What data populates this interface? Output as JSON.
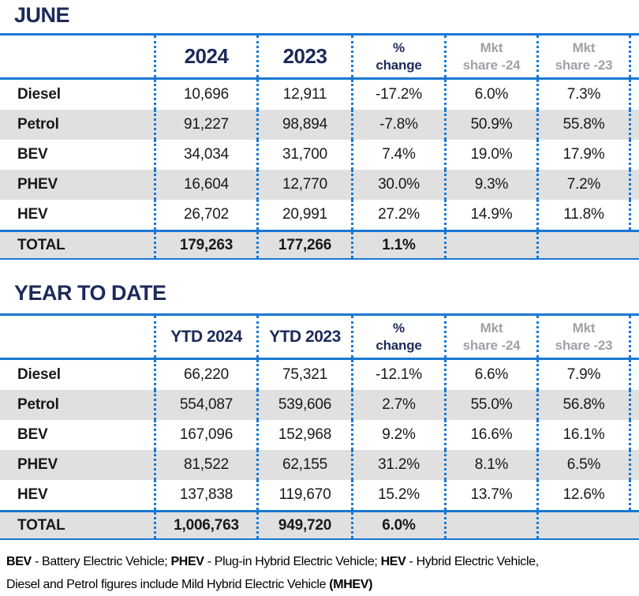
{
  "palette": {
    "line_blue": "#1a78d2",
    "heading_navy": "#1c2a58",
    "row_shade": "#e0e0e0",
    "muted_header": "#9da2a8"
  },
  "june": {
    "title": "JUNE",
    "headers": {
      "year_a": "2024",
      "year_b": "2023",
      "pct": "%\nchange",
      "mkt24": "Mkt\nshare -24",
      "mkt23": "Mkt\nshare -23"
    },
    "rows": [
      {
        "label": "Diesel",
        "v": [
          "10,696",
          "12,911",
          "-17.2%",
          "6.0%",
          "7.3%"
        ]
      },
      {
        "label": "Petrol",
        "v": [
          "91,227",
          "98,894",
          "-7.8%",
          "50.9%",
          "55.8%"
        ]
      },
      {
        "label": "BEV",
        "v": [
          "34,034",
          "31,700",
          "7.4%",
          "19.0%",
          "17.9%"
        ]
      },
      {
        "label": "PHEV",
        "v": [
          "16,604",
          "12,770",
          "30.0%",
          "9.3%",
          "7.2%"
        ]
      },
      {
        "label": "HEV",
        "v": [
          "26,702",
          "20,991",
          "27.2%",
          "14.9%",
          "11.8%"
        ]
      }
    ],
    "total": {
      "label": "TOTAL",
      "v": [
        "179,263",
        "177,266",
        "1.1%"
      ]
    }
  },
  "ytd": {
    "title": "YEAR TO DATE",
    "headers": {
      "year_a": "YTD 2024",
      "year_b": "YTD 2023",
      "pct": "%\nchange",
      "mkt24": "Mkt\nshare -24",
      "mkt23": "Mkt\nshare -23"
    },
    "rows": [
      {
        "label": "Diesel",
        "v": [
          "66,220",
          "75,321",
          "-12.1%",
          "6.6%",
          "7.9%"
        ]
      },
      {
        "label": "Petrol",
        "v": [
          "554,087",
          "539,606",
          "2.7%",
          "55.0%",
          "56.8%"
        ]
      },
      {
        "label": "BEV",
        "v": [
          "167,096",
          "152,968",
          "9.2%",
          "16.6%",
          "16.1%"
        ]
      },
      {
        "label": "PHEV",
        "v": [
          "81,522",
          "62,155",
          "31.2%",
          "8.1%",
          "6.5%"
        ]
      },
      {
        "label": "HEV",
        "v": [
          "137,838",
          "119,670",
          "15.2%",
          "13.7%",
          "12.6%"
        ]
      }
    ],
    "total": {
      "label": "TOTAL",
      "v": [
        "1,006,763",
        "949,720",
        "6.0%"
      ]
    }
  },
  "footnote": {
    "line1": [
      {
        "t": "BEV"
      },
      {
        "t": " - Battery Electric Vehicle; "
      },
      {
        "t": "PHEV"
      },
      {
        "t": " - Plug-in Hybrid Electric Vehicle; "
      },
      {
        "t": "HEV"
      },
      {
        "t": " - Hybrid Electric Vehicle,"
      }
    ],
    "line2": [
      {
        "t": "Diesel and Petrol figures include Mild Hybrid Electric Vehicle "
      },
      {
        "t": "(MHEV)"
      }
    ]
  }
}
